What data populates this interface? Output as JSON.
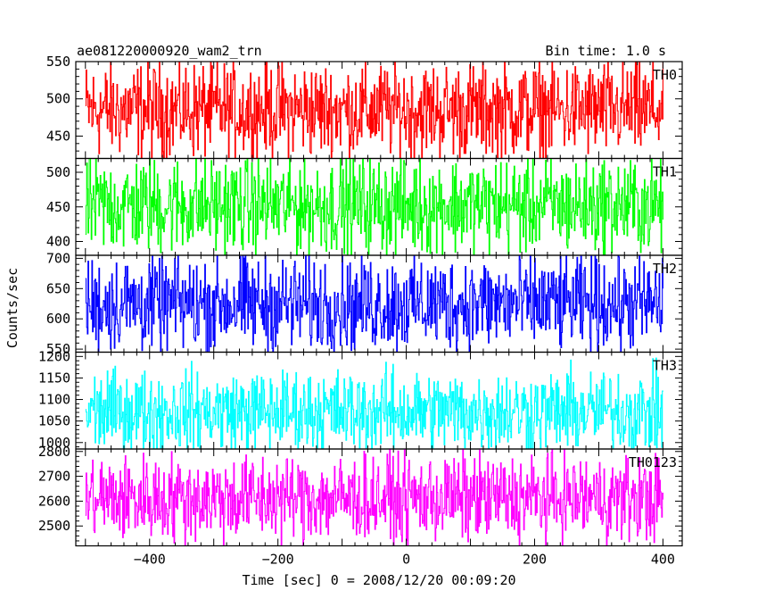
{
  "chart_data": {
    "type": "line",
    "title_left": "ae081220000920_wam2_trn",
    "title_right": "Bin time: 1.0 s",
    "xlabel": "Time [sec] 0 = 2008/12/20 00:09:20",
    "ylabel": "Counts/sec",
    "xlim": [
      -515,
      430
    ],
    "x_start": -500,
    "x_end": 400,
    "x_step": 1.0,
    "x_ticks": [
      -400,
      -200,
      0,
      200,
      400
    ],
    "grid": false,
    "panels": [
      {
        "name": "TH0",
        "color": "#ff0000",
        "ylim": [
          420,
          550
        ],
        "y_ticks": [
          450,
          500,
          550
        ],
        "mean": 485,
        "amplitude": 55
      },
      {
        "name": "TH1",
        "color": "#00ff00",
        "ylim": [
          380,
          520
        ],
        "y_ticks": [
          400,
          450,
          500
        ],
        "mean": 452,
        "amplitude": 60
      },
      {
        "name": "TH2",
        "color": "#0000ff",
        "ylim": [
          545,
          705
        ],
        "y_ticks": [
          550,
          600,
          650,
          700
        ],
        "mean": 625,
        "amplitude": 68
      },
      {
        "name": "TH3",
        "color": "#00ffff",
        "ylim": [
          985,
          1210
        ],
        "y_ticks": [
          1000,
          1050,
          1100,
          1150,
          1200
        ],
        "mean": 1072,
        "amplitude": 82
      },
      {
        "name": "TH0123",
        "color": "#ff00ff",
        "ylim": [
          2420,
          2810
        ],
        "y_ticks": [
          2500,
          2600,
          2700,
          2800
        ],
        "mean": 2612,
        "amplitude": 150
      }
    ]
  }
}
